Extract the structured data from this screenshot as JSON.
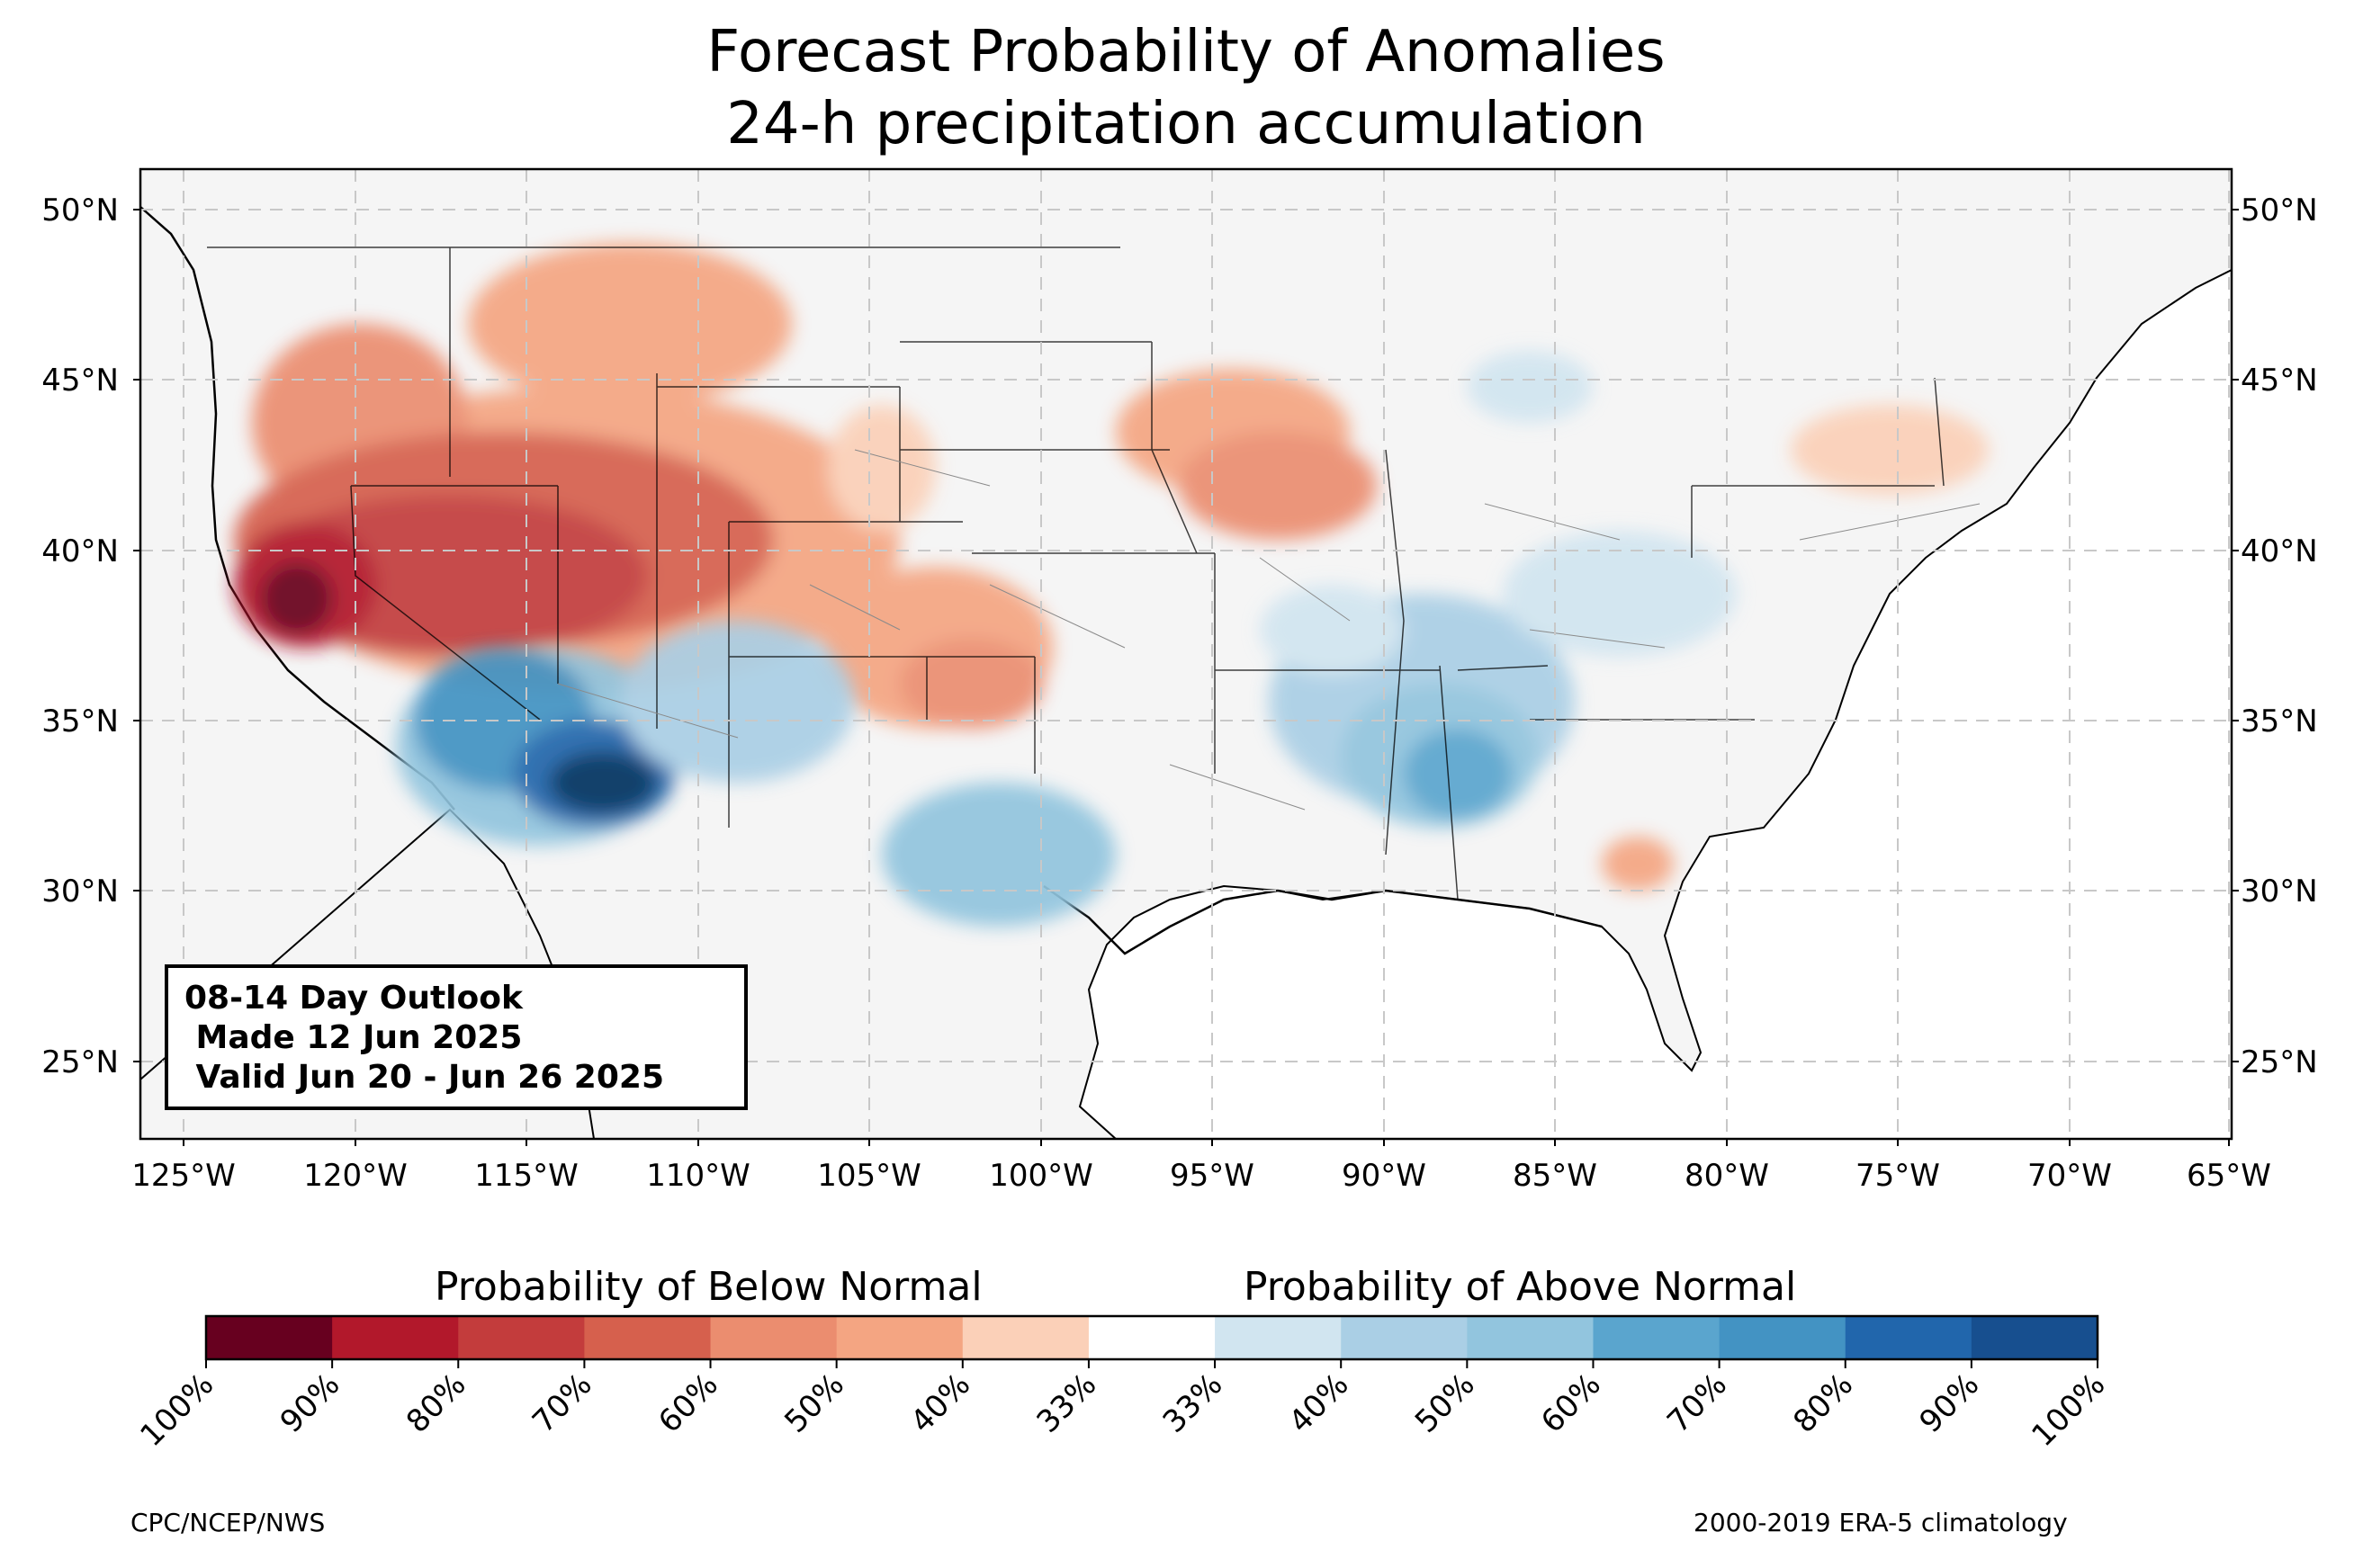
{
  "title": {
    "line1": "Forecast Probability of Anomalies",
    "line2": "24-h precipitation accumulation"
  },
  "map": {
    "lat_labels": [
      "50°N",
      "45°N",
      "40°N",
      "35°N",
      "30°N",
      "25°N"
    ],
    "lon_labels": [
      "125°W",
      "120°W",
      "115°W",
      "110°W",
      "105°W",
      "100°W",
      "95°W",
      "90°W",
      "85°W",
      "80°W",
      "75°W",
      "70°W",
      "65°W"
    ],
    "background_color": "#f5f5f5",
    "gridline_color": "#c8c8c8"
  },
  "outlook": {
    "line1": "08-14 Day Outlook",
    "line2": " Made 12 Jun 2025",
    "line3": " Valid Jun 20 - Jun 26 2025"
  },
  "colorbar": {
    "below_title": "Probability of Below Normal",
    "above_title": "Probability of Above Normal",
    "tick_labels": [
      "100%",
      "90%",
      "80%",
      "70%",
      "60%",
      "50%",
      "40%",
      "33%",
      "33%",
      "40%",
      "50%",
      "60%",
      "70%",
      "80%",
      "90%",
      "100%"
    ],
    "colors": [
      "#67001f",
      "#b2182b",
      "#c33c3c",
      "#d6604d",
      "#eb8d6f",
      "#f4a582",
      "#fbd0b8",
      "#ffffff",
      "#d1e5f0",
      "#aacfe5",
      "#92c5de",
      "#5aa5ce",
      "#4393c3",
      "#2166ac",
      "#174f8f",
      "#053061"
    ]
  },
  "footer": {
    "left": "CPC/NCEP/NWS",
    "right": "2000-2019 ERA-5 climatology"
  }
}
